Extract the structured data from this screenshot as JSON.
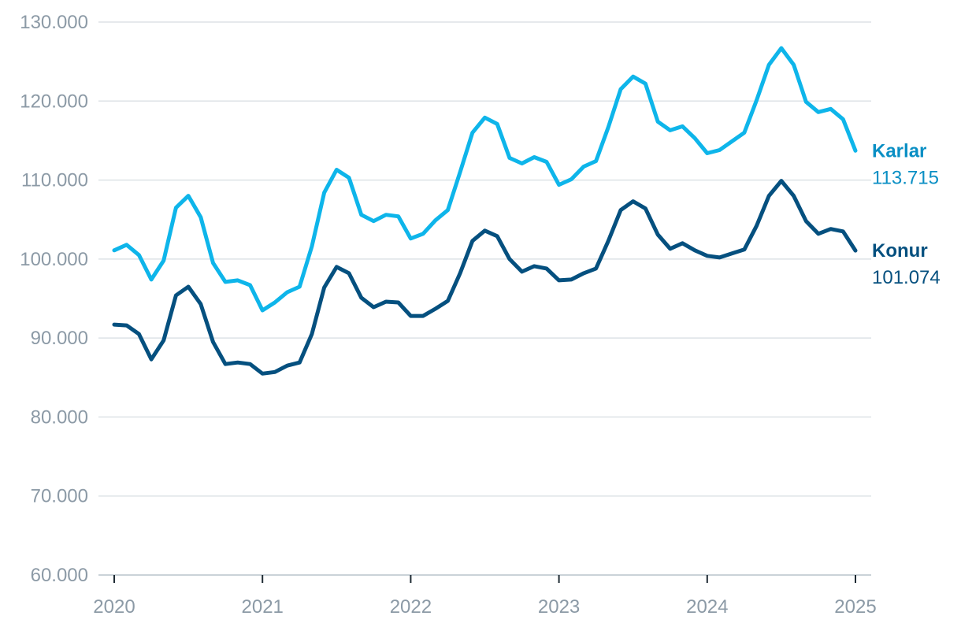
{
  "chart_data": {
    "type": "line",
    "title": "",
    "xlabel": "",
    "ylabel": "",
    "x_range": [
      "2020-01",
      "2025-01"
    ],
    "ylim": [
      60000,
      130000
    ],
    "y_ticks": [
      {
        "value": 60000,
        "label": "60.000"
      },
      {
        "value": 70000,
        "label": "70.000"
      },
      {
        "value": 80000,
        "label": "80.000"
      },
      {
        "value": 90000,
        "label": "90.000"
      },
      {
        "value": 100000,
        "label": "100.000"
      },
      {
        "value": 110000,
        "label": "110.000"
      },
      {
        "value": 120000,
        "label": "120.000"
      },
      {
        "value": 130000,
        "label": "130.000"
      }
    ],
    "x_ticks": [
      {
        "value": "2020-01",
        "label": "2020"
      },
      {
        "value": "2021-01",
        "label": "2021"
      },
      {
        "value": "2022-01",
        "label": "2022"
      },
      {
        "value": "2023-01",
        "label": "2023"
      },
      {
        "value": "2024-01",
        "label": "2024"
      },
      {
        "value": "2025-01",
        "label": "2025"
      }
    ],
    "grid": "horizontal",
    "legend": "end-of-line labels",
    "series": [
      {
        "name": "Karlar",
        "end_label": "113.715",
        "color": "#0eb5ea",
        "label_color": "#0a8fc4",
        "x": [
          "2020-01",
          "2020-02",
          "2020-03",
          "2020-04",
          "2020-05",
          "2020-06",
          "2020-07",
          "2020-08",
          "2020-09",
          "2020-10",
          "2020-11",
          "2020-12",
          "2021-01",
          "2021-02",
          "2021-03",
          "2021-04",
          "2021-05",
          "2021-06",
          "2021-07",
          "2021-08",
          "2021-09",
          "2021-10",
          "2021-11",
          "2021-12",
          "2022-01",
          "2022-02",
          "2022-03",
          "2022-04",
          "2022-05",
          "2022-06",
          "2022-07",
          "2022-08",
          "2022-09",
          "2022-10",
          "2022-11",
          "2022-12",
          "2023-01",
          "2023-02",
          "2023-03",
          "2023-04",
          "2023-05",
          "2023-06",
          "2023-07",
          "2023-08",
          "2023-09",
          "2023-10",
          "2023-11",
          "2023-12",
          "2024-01",
          "2024-02",
          "2024-03",
          "2024-04",
          "2024-05",
          "2024-06",
          "2024-07",
          "2024-08",
          "2024-09",
          "2024-10",
          "2024-11",
          "2024-12",
          "2025-01"
        ],
        "values": [
          101100,
          101800,
          100500,
          97400,
          99800,
          106500,
          108000,
          105300,
          99500,
          97100,
          97300,
          96700,
          93500,
          94500,
          95800,
          96500,
          101600,
          108400,
          111300,
          110300,
          105600,
          104800,
          105600,
          105400,
          102600,
          103200,
          104900,
          106200,
          111000,
          116000,
          117900,
          117100,
          112800,
          112100,
          112900,
          112300,
          109400,
          110100,
          111700,
          112400,
          116700,
          121500,
          123100,
          122200,
          117400,
          116300,
          116800,
          115300,
          113400,
          113800,
          114900,
          116000,
          120100,
          124600,
          126700,
          124600,
          119900,
          118600,
          119000,
          117700,
          113715
        ]
      },
      {
        "name": "Konur",
        "end_label": "101.074",
        "color": "#05507f",
        "label_color": "#05507f",
        "x": [
          "2020-01",
          "2020-02",
          "2020-03",
          "2020-04",
          "2020-05",
          "2020-06",
          "2020-07",
          "2020-08",
          "2020-09",
          "2020-10",
          "2020-11",
          "2020-12",
          "2021-01",
          "2021-02",
          "2021-03",
          "2021-04",
          "2021-05",
          "2021-06",
          "2021-07",
          "2021-08",
          "2021-09",
          "2021-10",
          "2021-11",
          "2021-12",
          "2022-01",
          "2022-02",
          "2022-03",
          "2022-04",
          "2022-05",
          "2022-06",
          "2022-07",
          "2022-08",
          "2022-09",
          "2022-10",
          "2022-11",
          "2022-12",
          "2023-01",
          "2023-02",
          "2023-03",
          "2023-04",
          "2023-05",
          "2023-06",
          "2023-07",
          "2023-08",
          "2023-09",
          "2023-10",
          "2023-11",
          "2023-12",
          "2024-01",
          "2024-02",
          "2024-03",
          "2024-04",
          "2024-05",
          "2024-06",
          "2024-07",
          "2024-08",
          "2024-09",
          "2024-10",
          "2024-11",
          "2024-12",
          "2025-01"
        ],
        "values": [
          91700,
          91600,
          90500,
          87300,
          89700,
          95400,
          96500,
          94300,
          89500,
          86700,
          86900,
          86700,
          85500,
          85700,
          86500,
          86900,
          90500,
          96400,
          99000,
          98200,
          95100,
          93900,
          94600,
          94500,
          92800,
          92800,
          93700,
          94700,
          98200,
          102300,
          103600,
          102900,
          100000,
          98400,
          99100,
          98800,
          97300,
          97400,
          98200,
          98800,
          102300,
          106200,
          107300,
          106400,
          103100,
          101300,
          102000,
          101100,
          100400,
          100200,
          100700,
          101200,
          104200,
          108000,
          109900,
          108000,
          104800,
          103200,
          103800,
          103500,
          101074
        ]
      }
    ]
  }
}
